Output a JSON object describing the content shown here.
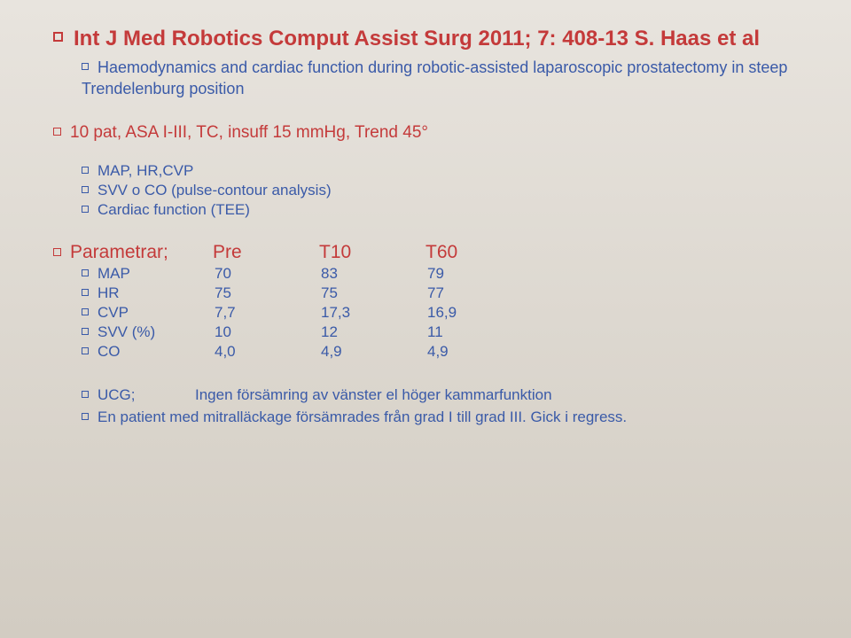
{
  "colors": {
    "red": "#c43a3a",
    "blue": "#3a5aa8",
    "bg_top": "#e8e4de",
    "bg_bottom": "#d2ccc2"
  },
  "title": "Int J Med Robotics Comput Assist Surg 2011; 7: 408-13 S. Haas et al",
  "sub1": "Haemodynamics and cardiac function during robotic-assisted laparoscopic prostatectomy in steep Trendelenburg position",
  "sub2": "10 pat, ASA I-III, TC, insuff 15 mmHg, Trend 45°",
  "measures": [
    "MAP, HR,CVP",
    "SVV o CO (pulse-contour analysis)",
    "Cardiac function (TEE)"
  ],
  "params": {
    "header": {
      "label": "Parametrar;",
      "c1": "Pre",
      "c2": "T10",
      "c3": "T60"
    },
    "rows": [
      {
        "label": "MAP",
        "c1": "70",
        "c2": "83",
        "c3": "79"
      },
      {
        "label": "HR",
        "c1": "75",
        "c2": "75",
        "c3": "77"
      },
      {
        "label": "CVP",
        "c1": "7,7",
        "c2": "17,3",
        "c3": "16,9"
      },
      {
        "label": "SVV (%)",
        "c1": "10",
        "c2": "12",
        "c3": "11"
      },
      {
        "label": "CO",
        "c1": "4,0",
        "c2": "4,9",
        "c3": "4,9"
      }
    ]
  },
  "footer": {
    "line1_label": "UCG;",
    "line1_text": "Ingen försämring av vänster el höger kammarfunktion",
    "line2": "En patient med mitralläckage försämrades från grad I till grad III. Gick i regress."
  }
}
